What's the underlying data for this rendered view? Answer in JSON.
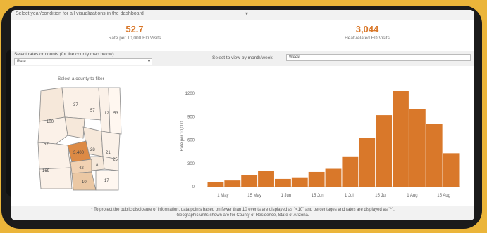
{
  "topbar": {
    "text": "Select year/condition for all visualizations in the dashboard"
  },
  "kpis": [
    {
      "value": "52.7",
      "label": "Rate per 10,000 ED Visits"
    },
    {
      "value": "3,044",
      "label": "Heat-related ED Visits"
    }
  ],
  "controls": {
    "left_label": "Select rates or counts (for the county map below)",
    "left_value": "Rate",
    "right_label": "Select to view by month/week",
    "right_value": "Week"
  },
  "map": {
    "label": "Select a county to filter",
    "counties": [
      "100",
      "37",
      "57",
      "12",
      "53",
      "52",
      "3,400",
      "28",
      "21",
      "25",
      "8",
      "42",
      "17",
      "10",
      "169"
    ]
  },
  "chart_data": {
    "type": "bar",
    "ylabel": "Rate per 10,000",
    "ylim": [
      0,
      1300
    ],
    "yticks": [
      "0",
      "300",
      "600",
      "900",
      "1200"
    ],
    "xtick_labels": [
      "1 May",
      "15 May",
      "1 Jun",
      "15 Jun",
      "1 Jul",
      "15 Jul",
      "1 Aug",
      "15 Aug"
    ],
    "values": [
      55,
      80,
      150,
      200,
      100,
      120,
      190,
      230,
      390,
      630,
      920,
      1230,
      1000,
      810,
      430
    ],
    "bar_color": "#D9782A"
  },
  "footnote": {
    "line1": "* To protect the public disclosure of information, data points based on fewer than 10 events are displayed as \"<10\" and percentages and rates are displayed as \"*\".",
    "line2": "Geographic units shown are for County of Residence, State of Arizona."
  },
  "colors": {
    "background": "#EBB53A",
    "accent": "#D9782A",
    "frame": "#1b1b1b"
  }
}
